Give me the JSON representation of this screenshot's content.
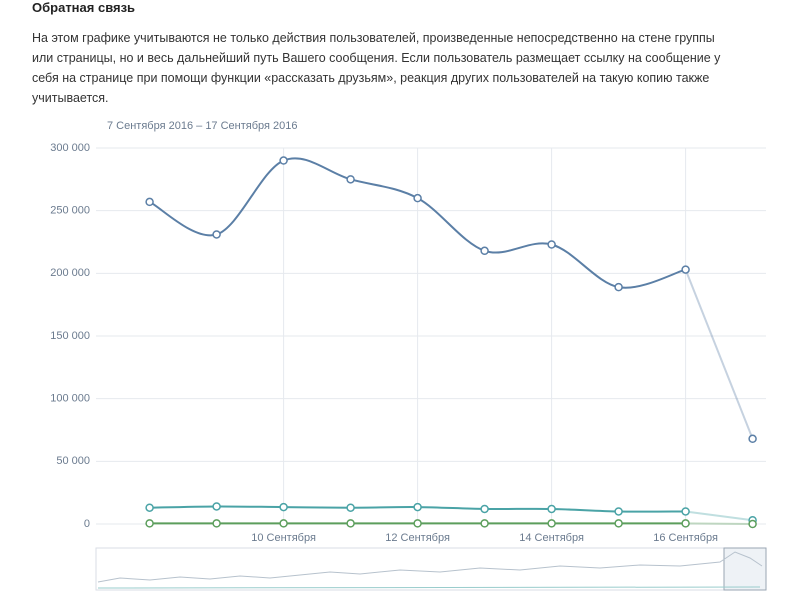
{
  "header": {
    "title": "Обратная связь",
    "text_lines": [
      "На этом графике учитываются не только действия пользователей, произведенные непосредственно на стене группы",
      "или страницы, но и весь дальнейший путь Вашего сообщения. Если пользователь размещает ссылку на сообщение у",
      "себя на странице при помощи функции «рассказать друзьям», реакция других пользователей на такую копию также",
      "учитывается."
    ]
  },
  "chart_data": {
    "type": "line",
    "subtitle": "7 Сентября 2016 – 17 Сентября 2016",
    "x": [
      8,
      9,
      10,
      11,
      12,
      13,
      14,
      15,
      16,
      17
    ],
    "xlim": [
      7.2,
      17.2
    ],
    "xticks": [
      {
        "value": 10,
        "label": "10 Сентября"
      },
      {
        "value": 12,
        "label": "12 Сентября"
      },
      {
        "value": 14,
        "label": "14 Сентября"
      },
      {
        "value": 16,
        "label": "16 Сентября"
      }
    ],
    "ylim": [
      0,
      300000
    ],
    "yticks": [
      {
        "value": 0,
        "label": "0"
      },
      {
        "value": 50000,
        "label": "50 000"
      },
      {
        "value": 100000,
        "label": "100 000"
      },
      {
        "value": 150000,
        "label": "150 000"
      },
      {
        "value": 200000,
        "label": "200 000"
      },
      {
        "value": 250000,
        "label": "250 000"
      },
      {
        "value": 300000,
        "label": "300 000"
      }
    ],
    "grid": true,
    "series": [
      {
        "color": "#5b7fa6",
        "values": [
          257000,
          231000,
          290000,
          275000,
          260000,
          218000,
          223000,
          189000,
          203000,
          68000
        ]
      },
      {
        "color": "#4aa3a6",
        "values": [
          13000,
          14000,
          13500,
          13000,
          13500,
          12000,
          12000,
          10000,
          10000,
          3000
        ]
      },
      {
        "color": "#5c9e5c",
        "values": [
          500,
          500,
          500,
          500,
          500,
          500,
          500,
          500,
          500,
          0
        ]
      }
    ]
  }
}
